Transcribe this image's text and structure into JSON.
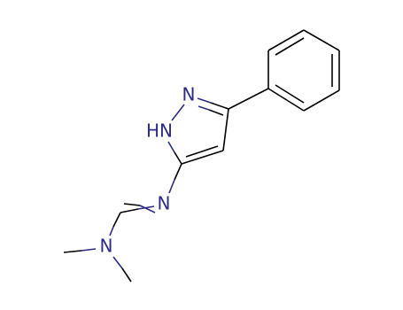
{
  "atoms": [
    {
      "label": "N"
    },
    {
      "label": "HN"
    },
    {
      "label": "N"
    },
    {
      "label": "N"
    }
  ]
}
